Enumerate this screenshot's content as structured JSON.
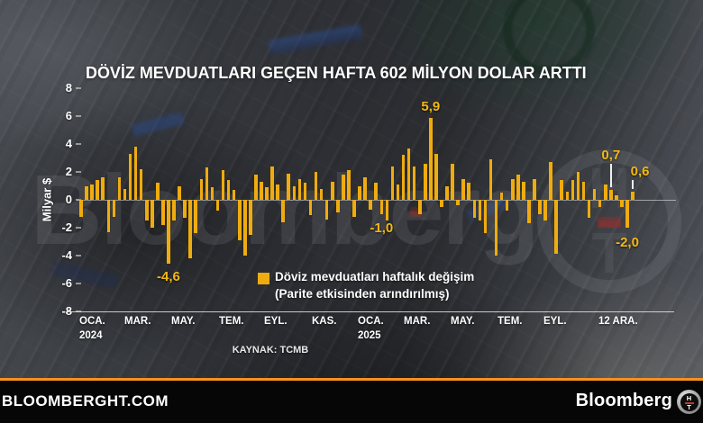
{
  "title": "DÖVİZ MEVDUATLARI GEÇEN HAFTA 602 MİLYON DOLAR ARTTI",
  "watermark": {
    "text": "Bloomberg",
    "badge_h": "H",
    "badge_t": "T"
  },
  "footer": {
    "site": "BLOOMBERGHT.COM",
    "brand": "Bloomberg",
    "badge_h": "H",
    "badge_t": "T"
  },
  "colors": {
    "bar_gold": "#EFAC10",
    "annotation_gold": "#F4B813",
    "accent_orange": "#F6921E",
    "footer_bg": "#060606",
    "text_white": "#FFFFFF"
  },
  "chart_data": {
    "type": "bar",
    "title": "DÖVİZ MEVDUATLARI GEÇEN HAFTA 602 MİLYON DOLAR ARTTI",
    "xlabel": "",
    "ylabel": "Milyar $",
    "ylim": [
      -8,
      8
    ],
    "yticks": [
      8,
      6,
      4,
      2,
      0,
      -2,
      -4,
      -6,
      -8
    ],
    "grid": false,
    "legend_position": "bottom-center",
    "xticklabels": [
      "OCA.",
      "MAR.",
      "MAY.",
      "TEM.",
      "EYL.",
      "KAS.",
      "OCA.",
      "MAR.",
      "MAY.",
      "TEM.",
      "EYL.",
      "12 ARA."
    ],
    "xyearlabels": [
      {
        "tick": 0,
        "text": "2024"
      },
      {
        "tick": 6,
        "text": "2025"
      }
    ],
    "values": [
      -1.2,
      1.0,
      1.1,
      1.4,
      1.6,
      -2.3,
      -1.2,
      1.6,
      0.8,
      3.3,
      3.8,
      2.2,
      -1.5,
      -2.0,
      1.2,
      -1.8,
      -4.6,
      -1.5,
      1.0,
      -1.3,
      -4.2,
      -2.4,
      1.5,
      2.3,
      0.9,
      -0.8,
      2.1,
      1.4,
      0.7,
      -2.9,
      -4.0,
      -2.5,
      1.8,
      1.3,
      0.9,
      2.4,
      1.1,
      -1.6,
      1.9,
      1.0,
      1.5,
      1.2,
      -1.1,
      2.0,
      0.8,
      -1.4,
      1.3,
      -0.9,
      1.8,
      2.1,
      -1.2,
      1.0,
      1.6,
      -0.7,
      1.2,
      -1.0,
      -1.5,
      2.4,
      1.1,
      3.2,
      3.7,
      2.4,
      -1.0,
      2.6,
      5.9,
      3.3,
      -0.5,
      1.0,
      2.6,
      -0.4,
      1.5,
      1.2,
      -1.3,
      -1.5,
      -2.4,
      2.9,
      -4.0,
      0.5,
      -0.8,
      1.5,
      1.8,
      1.3,
      -1.7,
      1.5,
      -1.0,
      -1.5,
      2.7,
      -3.9,
      1.4,
      0.6,
      1.4,
      2.0,
      1.3,
      -1.3,
      0.8,
      -0.5,
      1.1,
      0.7,
      0.3,
      -0.5,
      -2.0,
      0.6
    ],
    "annotations": [
      {
        "index": 64,
        "text": "5,9",
        "side": "above"
      },
      {
        "index": 16,
        "text": "-4,6",
        "side": "below",
        "dy": 3
      },
      {
        "index": 55,
        "text": "-1,0",
        "side": "below",
        "dy": 4
      },
      {
        "index": 97,
        "text": "0,7",
        "side": "above",
        "leader": 26
      },
      {
        "index": 101,
        "text": "0,6",
        "side": "above",
        "leader": 10,
        "dx": 8
      },
      {
        "index": 100,
        "text": "-2,0",
        "side": "below",
        "dy": 5
      }
    ],
    "legend": {
      "line1": "Döviz mevduatları haftalık değişim",
      "line2": "(Parite etkisinden arındırılmış)"
    },
    "source": "KAYNAK: TCMB"
  }
}
